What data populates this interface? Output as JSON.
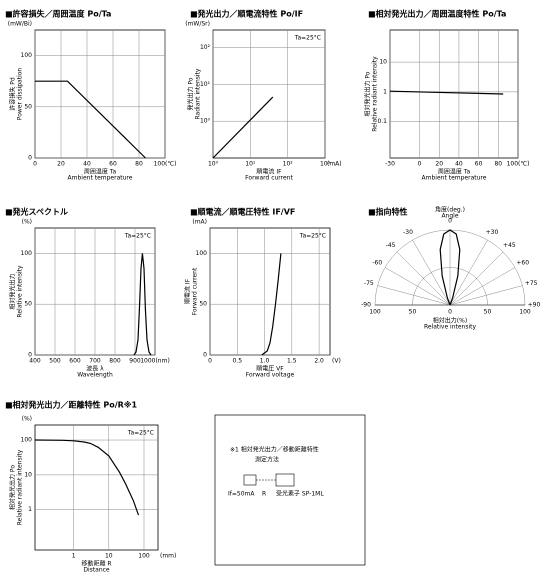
{
  "chart_data": [
    {
      "type": "line",
      "title": "■許容損失／周囲温度 Po/Ta",
      "yunit": "(mW/Bi)",
      "ylabel": "許容損失 Pd",
      "ylabel_en": "Power dissipation",
      "xlabel": "周囲温度 Ta",
      "xlabel_en": "Ambient temperature",
      "xlim": [
        0,
        100
      ],
      "ylim": [
        0,
        125
      ],
      "xticks": [
        0,
        20,
        40,
        60,
        80,
        {
          "value": 100,
          "label": "100(℃)"
        }
      ],
      "yticks": [
        0,
        50,
        100
      ],
      "series": [
        {
          "color": "#000000",
          "x": [
            0,
            25,
            85
          ],
          "values": [
            75,
            75,
            0
          ]
        }
      ]
    },
    {
      "type": "line",
      "title": "■発光出力／順電流特性 Po/IF",
      "yunit": "(mW/Sr)",
      "ylabel": "発光出力 Po",
      "ylabel_en": "Radiant intensity",
      "xlabel": "順電流 IF",
      "xlabel_en": "Forward current",
      "annotation": "Ta=25°C",
      "xunit": "(mA)",
      "xlog": true,
      "ylog": true,
      "xlim": [
        1,
        1000
      ],
      "ylim": [
        0.1,
        300
      ],
      "xticks": [
        {
          "value": 1,
          "label": "10⁰"
        },
        {
          "value": 10,
          "label": "10¹"
        },
        {
          "value": 100,
          "label": "10²"
        },
        {
          "value": 1000,
          "label": "10³"
        }
      ],
      "yticks": [
        {
          "value": 1,
          "label": "10⁰"
        },
        {
          "value": 10,
          "label": "10¹"
        },
        {
          "value": 100,
          "label": "10²"
        }
      ],
      "series": [
        {
          "color": "#000000",
          "x": [
            1,
            40
          ],
          "values": [
            0.1,
            4.5
          ]
        }
      ]
    },
    {
      "type": "line",
      "title": "■相対発光出力／周囲温度特性 Po/Ta",
      "ylabel": "相対発光出力 Po",
      "ylabel_en": "Relative radiant intensity",
      "xlabel": "周囲温度 Ta",
      "xlabel_en": "Ambient temperature",
      "ylog": true,
      "xlim": [
        -30,
        100
      ],
      "ylim": [
        0.006,
        120
      ],
      "xticks": [
        -30,
        0,
        20,
        40,
        60,
        80,
        {
          "value": 100,
          "label": "100(℃)"
        }
      ],
      "yticks": [
        0.1,
        1,
        10
      ],
      "series": [
        {
          "color": "#000000",
          "x": [
            -30,
            85
          ],
          "values": [
            1.05,
            0.85
          ]
        }
      ]
    },
    {
      "type": "line",
      "title": "■発光スペクトル",
      "yunit": "(%)",
      "ylabel": "相対発光出力",
      "ylabel_en": "Relative intensity",
      "xlabel": "波長 λ",
      "xlabel_en": "Wavelength",
      "annotation": "Ta=25°C",
      "xlim": [
        400,
        1000
      ],
      "ylim": [
        0,
        125
      ],
      "xticks": [
        400,
        500,
        600,
        700,
        800,
        900,
        {
          "value": 1000,
          "label": "1000(nm)"
        }
      ],
      "yticks": [
        0,
        50,
        100
      ],
      "series": [
        {
          "color": "#000000",
          "x": [
            895,
            905,
            915,
            922,
            930,
            937,
            945,
            952,
            960,
            970,
            980
          ],
          "values": [
            0,
            3,
            15,
            45,
            85,
            100,
            85,
            45,
            15,
            3,
            0
          ]
        }
      ]
    },
    {
      "type": "line",
      "title": "■順電流／順電圧特性 IF/VF",
      "yunit": "(mA)",
      "ylabel": "順電流 IF",
      "ylabel_en": "Forward current",
      "xlabel": "順電圧 VF",
      "xlabel_en": "Forward voltage",
      "annotation": "Ta=25°C",
      "xunit": "(V)",
      "xlim": [
        0,
        2.2
      ],
      "ylim": [
        0,
        125
      ],
      "xticks": [
        0,
        0.5,
        {
          "value": 1,
          "label": "1.0"
        },
        1.5,
        {
          "value": 2,
          "label": "2.0"
        }
      ],
      "yticks": [
        0,
        50,
        100
      ],
      "series": [
        {
          "color": "#000000",
          "x": [
            0.95,
            1.05,
            1.1,
            1.15,
            1.2,
            1.25,
            1.3
          ],
          "values": [
            0,
            4,
            12,
            28,
            50,
            74,
            100
          ]
        }
      ]
    },
    {
      "type": "polar",
      "title": "■指向特性",
      "angle_label": "角度(deg.)",
      "angle_label_en": "Angle",
      "r_label": "相対出力(%)",
      "r_label_en": "Relative intensity",
      "rlim": [
        0,
        100
      ],
      "rticks": [
        0,
        50,
        100
      ],
      "angle_ticks": [
        -90,
        -75,
        -60,
        -45,
        -30,
        0,
        {
          "value": 30,
          "label": "+30"
        },
        {
          "value": 45,
          "label": "+45"
        },
        {
          "value": 60,
          "label": "+60"
        },
        {
          "value": 75,
          "label": "+75"
        },
        {
          "value": 90,
          "label": "+90"
        }
      ],
      "series": [
        {
          "color": "#000000",
          "x": [
            -30,
            -20,
            -15,
            -10,
            -5,
            0,
            5,
            10,
            15,
            20,
            30
          ],
          "values": [
            0,
            10,
            40,
            75,
            95,
            100,
            95,
            75,
            40,
            10,
            0
          ]
        }
      ]
    },
    {
      "type": "line",
      "title": "■相対発光出力／距離特性 Po/R※1",
      "yunit": "(%)",
      "ylabel": "相対発光出力 Po",
      "ylabel_en": "Relative radiant intensity",
      "xlabel": "移動距離 R",
      "xlabel_en": "Distance",
      "annotation": "Ta=25°C",
      "xunit": "(mm)",
      "xlog": true,
      "ylog": true,
      "xlim": [
        0.08,
        250
      ],
      "ylim": [
        0.07,
        270
      ],
      "xticks": [
        1,
        10,
        100
      ],
      "yticks": [
        1,
        10,
        100
      ],
      "series": [
        {
          "color": "#000000",
          "x": [
            0.08,
            0.5,
            1,
            2,
            3,
            5,
            10,
            20,
            30,
            50,
            70
          ],
          "values": [
            100,
            98,
            95,
            88,
            80,
            62,
            35,
            12,
            5.5,
            1.8,
            0.7
          ]
        }
      ]
    }
  ],
  "note": {
    "title": "※1 相対発光出力／移動距離特性",
    "subtitle": "測定方法",
    "current": "If=50mA",
    "distance": "R",
    "receiver": "受光素子 SP-1ML"
  }
}
